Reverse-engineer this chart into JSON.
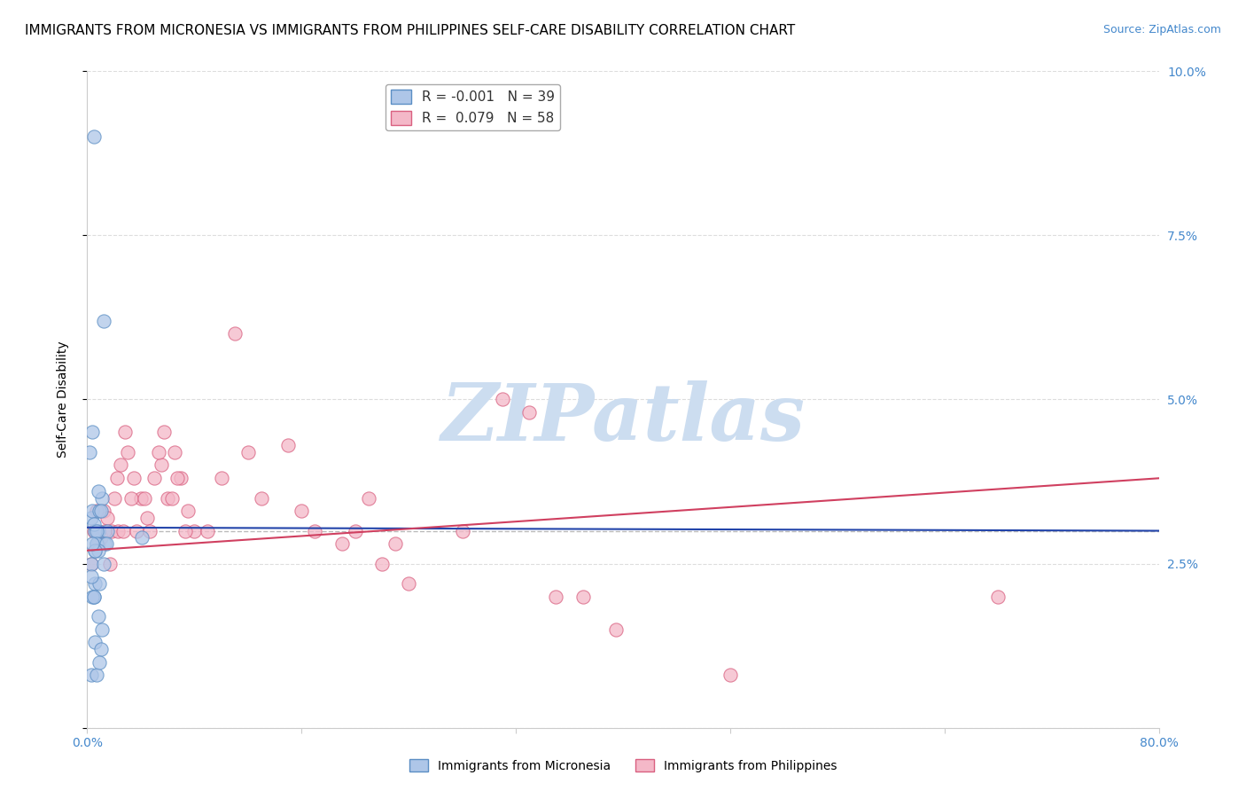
{
  "title": "IMMIGRANTS FROM MICRONESIA VS IMMIGRANTS FROM PHILIPPINES SELF-CARE DISABILITY CORRELATION CHART",
  "source": "Source: ZipAtlas.com",
  "ylabel": "Self-Care Disability",
  "xlim": [
    0.0,
    0.8
  ],
  "ylim": [
    0.0,
    0.1
  ],
  "yticks": [
    0.0,
    0.025,
    0.05,
    0.075,
    0.1
  ],
  "ytick_labels": [
    "",
    "2.5%",
    "5.0%",
    "7.5%",
    "10.0%"
  ],
  "xticks": [
    0.0,
    0.16,
    0.32,
    0.48,
    0.64,
    0.8
  ],
  "xtick_labels": [
    "0.0%",
    "",
    "",
    "",
    "",
    "80.0%"
  ],
  "micronesia_color": "#aec6e8",
  "philippines_color": "#f4b8c8",
  "micronesia_edge": "#5b8ec4",
  "philippines_edge": "#d96080",
  "trend_micronesia_color": "#2244aa",
  "trend_philippines_color": "#d04060",
  "mean_line_color": "#bbbbbb",
  "R_micronesia": -0.001,
  "N_micronesia": 39,
  "R_philippines": 0.079,
  "N_philippines": 58,
  "micronesia_x": [
    0.005,
    0.012,
    0.008,
    0.015,
    0.003,
    0.007,
    0.004,
    0.006,
    0.002,
    0.009,
    0.011,
    0.013,
    0.006,
    0.008,
    0.005,
    0.01,
    0.004,
    0.007,
    0.003,
    0.006,
    0.009,
    0.012,
    0.005,
    0.008,
    0.011,
    0.004,
    0.007,
    0.003,
    0.006,
    0.01,
    0.014,
    0.008,
    0.005,
    0.003,
    0.007,
    0.009,
    0.006,
    0.041,
    0.004
  ],
  "micronesia_y": [
    0.09,
    0.062,
    0.03,
    0.03,
    0.032,
    0.028,
    0.033,
    0.03,
    0.042,
    0.033,
    0.035,
    0.028,
    0.027,
    0.036,
    0.031,
    0.033,
    0.045,
    0.03,
    0.025,
    0.022,
    0.022,
    0.025,
    0.02,
    0.017,
    0.015,
    0.02,
    0.028,
    0.023,
    0.013,
    0.012,
    0.028,
    0.027,
    0.02,
    0.008,
    0.008,
    0.01,
    0.027,
    0.029,
    0.028
  ],
  "philippines_x": [
    0.005,
    0.008,
    0.012,
    0.02,
    0.025,
    0.015,
    0.018,
    0.022,
    0.03,
    0.01,
    0.035,
    0.04,
    0.028,
    0.05,
    0.045,
    0.06,
    0.055,
    0.07,
    0.065,
    0.075,
    0.08,
    0.09,
    0.1,
    0.11,
    0.12,
    0.13,
    0.15,
    0.16,
    0.17,
    0.19,
    0.2,
    0.21,
    0.22,
    0.23,
    0.24,
    0.003,
    0.007,
    0.013,
    0.017,
    0.023,
    0.027,
    0.033,
    0.037,
    0.043,
    0.047,
    0.053,
    0.057,
    0.063,
    0.067,
    0.073,
    0.37,
    0.48,
    0.28,
    0.31,
    0.33,
    0.35,
    0.395,
    0.68
  ],
  "philippines_y": [
    0.03,
    0.028,
    0.033,
    0.035,
    0.04,
    0.032,
    0.03,
    0.038,
    0.042,
    0.029,
    0.038,
    0.035,
    0.045,
    0.038,
    0.032,
    0.035,
    0.04,
    0.038,
    0.042,
    0.033,
    0.03,
    0.03,
    0.038,
    0.06,
    0.042,
    0.035,
    0.043,
    0.033,
    0.03,
    0.028,
    0.03,
    0.035,
    0.025,
    0.028,
    0.022,
    0.025,
    0.033,
    0.03,
    0.025,
    0.03,
    0.03,
    0.035,
    0.03,
    0.035,
    0.03,
    0.042,
    0.045,
    0.035,
    0.038,
    0.03,
    0.02,
    0.008,
    0.03,
    0.05,
    0.048,
    0.02,
    0.015,
    0.02
  ],
  "mic_trend_start": 0.0305,
  "mic_trend_end": 0.03,
  "phi_trend_start": 0.027,
  "phi_trend_end": 0.038,
  "mean_line_y": 0.03,
  "watermark_text": "ZIPatlas",
  "watermark_color": "#ccddf0",
  "background_color": "#ffffff",
  "grid_color": "#dddddd",
  "axis_color": "#cccccc",
  "tick_color": "#4488cc",
  "title_fontsize": 11,
  "label_fontsize": 10,
  "tick_fontsize": 10,
  "legend_fontsize": 11,
  "scatter_size": 120,
  "scatter_alpha": 0.75
}
